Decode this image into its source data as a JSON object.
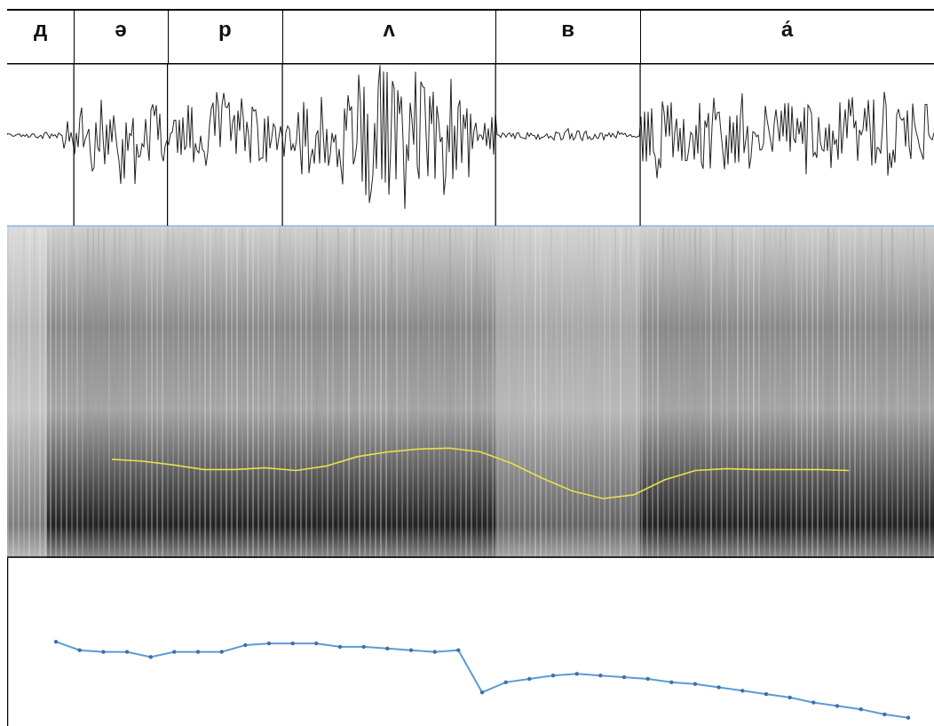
{
  "segments": [
    {
      "label": "д",
      "start": 0.0,
      "end": 0.072
    },
    {
      "label": "ə",
      "start": 0.072,
      "end": 0.173
    },
    {
      "label": "р",
      "start": 0.173,
      "end": 0.297
    },
    {
      "label": "ʌ",
      "start": 0.297,
      "end": 0.527
    },
    {
      "label": "в",
      "start": 0.527,
      "end": 0.683
    },
    {
      "label": "а́",
      "start": 0.683,
      "end": 1.0
    }
  ],
  "colors": {
    "waveform": "#222222",
    "pitch_track": "#e8e24a",
    "contour_line": "#5b9bd5",
    "contour_marker": "#3f6fa8",
    "separator": "#8fb3d6"
  },
  "intonation_contour": {
    "values": [
      0.82,
      0.77,
      0.76,
      0.76,
      0.73,
      0.76,
      0.76,
      0.76,
      0.8,
      0.81,
      0.81,
      0.81,
      0.79,
      0.79,
      0.78,
      0.77,
      0.76,
      0.77,
      0.52,
      0.58,
      0.6,
      0.62,
      0.63,
      0.62,
      0.61,
      0.6,
      0.58,
      0.57,
      0.55,
      0.53,
      0.51,
      0.49,
      0.46,
      0.44,
      0.42,
      0.39,
      0.37
    ],
    "ylim": [
      0,
      1
    ]
  },
  "pitch_track": {
    "values": [
      0.42,
      0.4,
      0.36,
      0.31,
      0.31,
      0.33,
      0.3,
      0.35,
      0.45,
      0.5,
      0.53,
      0.54,
      0.5,
      0.38,
      0.22,
      0.08,
      0.0,
      0.04,
      0.2,
      0.3,
      0.32,
      0.31,
      0.31,
      0.31,
      0.3
    ],
    "ylim": [
      0,
      1
    ]
  }
}
